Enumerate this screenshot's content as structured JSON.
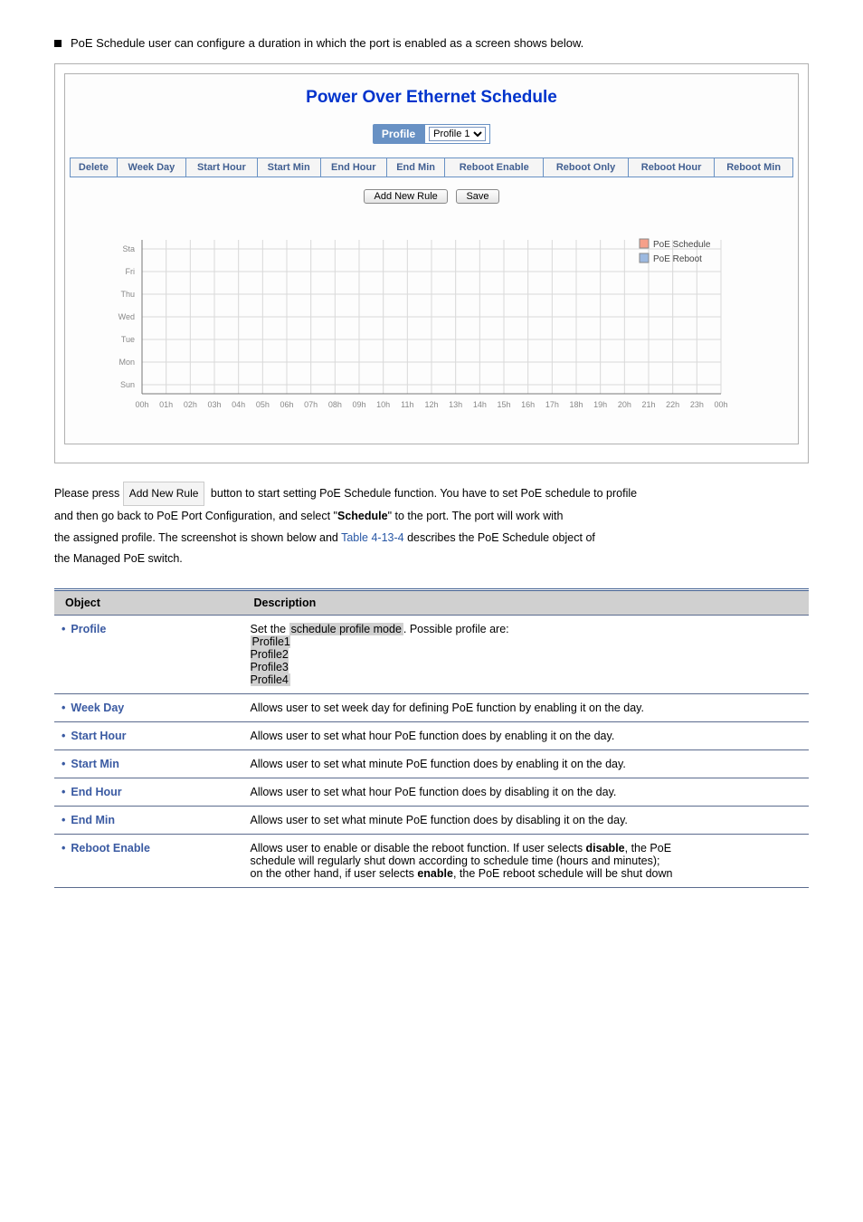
{
  "top_bullet_text": "PoE Schedule user can configure a duration in which the port is enabled as a screen shows below.",
  "panel": {
    "title": "Power Over Ethernet Schedule",
    "profile_label": "Profile",
    "profile_value": "Profile 1",
    "columns": [
      "Delete",
      "Week Day",
      "Start Hour",
      "Start Min",
      "End Hour",
      "End Min",
      "Reboot Enable",
      "Reboot Only",
      "Reboot Hour",
      "Reboot Min"
    ],
    "add_btn": "Add New Rule",
    "save_btn": "Save"
  },
  "chart": {
    "y_labels": [
      "Sta",
      "Fri",
      "Thu",
      "Wed",
      "Tue",
      "Mon",
      "Sun"
    ],
    "x_labels": [
      "00h",
      "01h",
      "02h",
      "03h",
      "04h",
      "05h",
      "06h",
      "07h",
      "08h",
      "09h",
      "10h",
      "11h",
      "12h",
      "13h",
      "14h",
      "15h",
      "16h",
      "17h",
      "18h",
      "19h",
      "20h",
      "21h",
      "22h",
      "23h",
      "00h"
    ],
    "legend1": "PoE Schedule",
    "legend2": "PoE Reboot",
    "legend1_color": "#f6a08a",
    "legend2_color": "#9cb9e0",
    "grid_color": "#d9d9d9",
    "axis_color": "#777777",
    "text_color": "#888888"
  },
  "mid_paragraph": {
    "prefix": "Please press ",
    "badge": "Add New Rule",
    "after_badge": " button to start setting PoE Schedule function. You have to set PoE schedule to profile",
    "line2": "and then go back to PoE Port Configuration, and select \"",
    "bold1": "Schedule",
    "after_bold1": "\" to the port. The port will work with",
    "line3_prefix": "the assigned profile. The screenshot is shown below and",
    "line3_link": "Table 4-13-4",
    "line3_suffix": "describes the PoE Schedule object of",
    "line4": "the Managed PoE switch."
  },
  "table": {
    "h1": "Object",
    "h2": "Description",
    "rows": [
      {
        "obj": "Profile",
        "desc_html": "Set the <span class='hl'>schedule profile mode</span>. Possible profile are:<br><span class='hl'>Profile1<br>Profile2<br>Profile3<br>Profile4</span>"
      },
      {
        "obj": "Week Day",
        "desc_html": "Allows user to set week day for defining PoE function by enabling it on the day."
      },
      {
        "obj": "Start Hour",
        "desc_html": "Allows user to set what hour PoE function does by enabling it on the day."
      },
      {
        "obj": "Start Min",
        "desc_html": "Allows user to set what minute PoE function does by enabling it on the day."
      },
      {
        "obj": "End Hour",
        "desc_html": "Allows user to set what hour PoE function does by disabling it on the day."
      },
      {
        "obj": "End Min",
        "desc_html": "Allows user to set what minute PoE function does by disabling it on the day."
      },
      {
        "obj": "Reboot Enable",
        "desc_html": "Allows user to enable or disable the reboot function. If user selects <b>disable</b>, the PoE<br>schedule will regularly shut down according to schedule time (hours and minutes);<br>on the other hand, if user selects <b>enable</b>, the PoE reboot schedule will be shut down"
      }
    ]
  }
}
